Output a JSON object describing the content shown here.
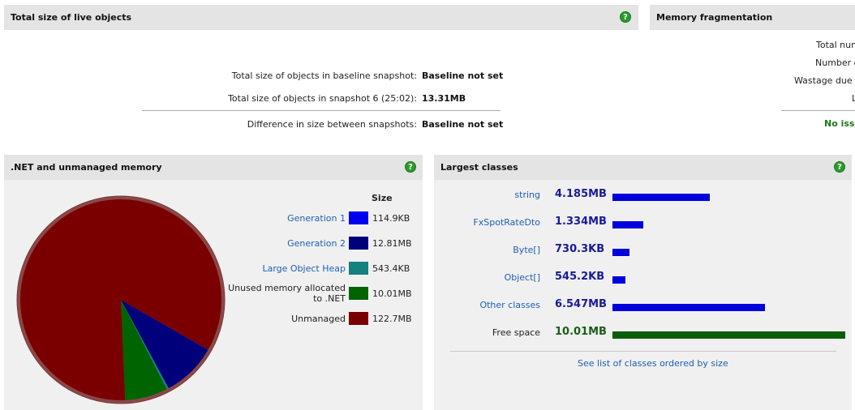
{
  "live_objects": {
    "title": "Total size of live objects",
    "rows": [
      {
        "label": "Total size of objects in baseline snapshot:",
        "value": "Baseline not set"
      },
      {
        "label": "Total size of objects in snapshot 6 (25:02):",
        "value": "13.31MB"
      },
      {
        "label": "Difference in size between snapshots:",
        "value": "Baseline not set"
      }
    ]
  },
  "fragmentation": {
    "title": "Memory fragmentation",
    "rows": [
      "Total numb",
      "Number of",
      "Wastage due to",
      "L"
    ],
    "status": "No issu",
    "status_color": "#1b7a1b"
  },
  "net_memory": {
    "title": ".NET and unmanaged memory",
    "size_header": "Size",
    "legend": [
      {
        "label": "Generation 1",
        "size": "114.9KB",
        "color": "#0000ee",
        "link": true
      },
      {
        "label": "Generation 2",
        "size": "12.81MB",
        "color": "#00007a",
        "link": true
      },
      {
        "label": "Large Object Heap",
        "size": "543.4KB",
        "color": "#148080",
        "link": true
      },
      {
        "label_line1": "Unused memory allocated",
        "label_line2": "to .NET",
        "size": "10.01MB",
        "color": "#006400",
        "link": false
      },
      {
        "label": "Unmanaged",
        "size": "122.7MB",
        "color": "#7a0000",
        "link": false
      }
    ]
  },
  "largest_classes": {
    "title": "Largest classes",
    "items": [
      {
        "name": "string",
        "size": "4.185MB",
        "value_mb": 4.185,
        "link": true
      },
      {
        "name": "FxSpotRateDto",
        "size": "1.334MB",
        "value_mb": 1.334,
        "link": true
      },
      {
        "name": "Byte[]",
        "size": "730.3KB",
        "value_mb": 0.7303,
        "link": true
      },
      {
        "name": "Object[]",
        "size": "545.2KB",
        "value_mb": 0.5452,
        "link": true
      },
      {
        "name": "Other classes",
        "size": "6.547MB",
        "value_mb": 6.547,
        "link": true
      },
      {
        "name": "Free space",
        "size": "10.01MB",
        "value_mb": 10.01,
        "link": false
      }
    ],
    "bar_color": "#0000dd",
    "free_bar_color": "#0a5e0a",
    "footer_link": "See list of classes ordered by size"
  }
}
